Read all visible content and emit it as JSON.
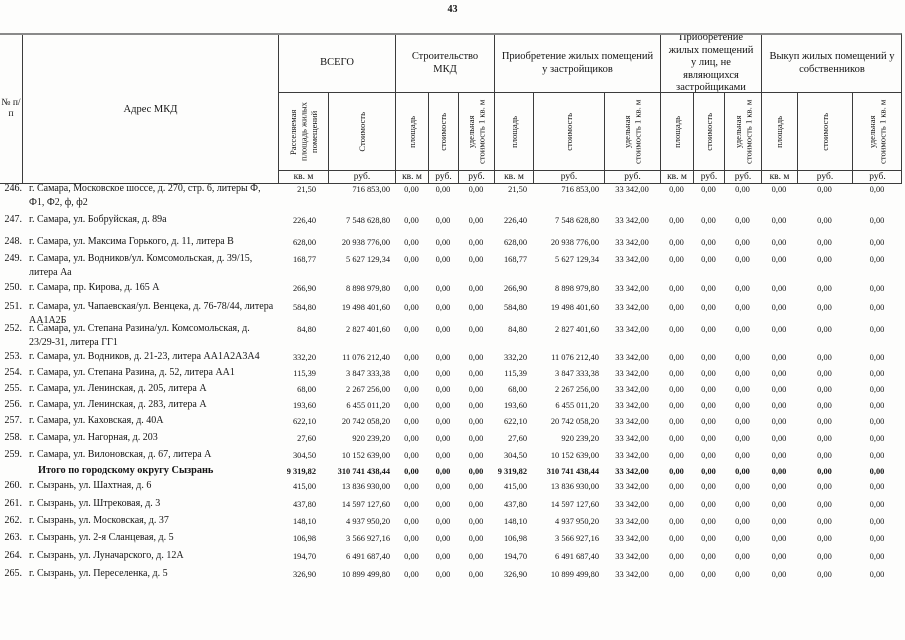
{
  "page": {
    "number": "43"
  },
  "table": {
    "headers": {
      "col_num": "№ п/п",
      "col_address": "Адрес МКД",
      "groups": [
        {
          "label": "ВСЕГО",
          "subs": [
            "Расселяемая площадь жилых помещений",
            "Стоимость"
          ],
          "units": [
            "кв. м",
            "руб."
          ]
        },
        {
          "label": "Строительство МКД",
          "subs": [
            "площадь",
            "стоимость",
            "удельная стоимость 1 кв. м"
          ],
          "units": [
            "кв. м",
            "руб.",
            "руб."
          ]
        },
        {
          "label": "Приобретение жилых помещений у застройщиков",
          "subs": [
            "площадь",
            "стоимость",
            "удельная стоимость 1 кв. м"
          ],
          "units": [
            "кв. м",
            "руб.",
            "руб."
          ]
        },
        {
          "label": "Приобретение жилых помещений у лиц, не являющихся застройщиками",
          "subs": [
            "площадь",
            "стоимость",
            "удельная стоимость 1 кв. м"
          ],
          "units": [
            "кв. м",
            "руб.",
            "руб."
          ]
        },
        {
          "label": "Выкуп жилых помещений у собственников",
          "subs": [
            "площадь",
            "стоимость",
            "удельная стоимость 1 кв. м"
          ],
          "units": [
            "кв. м",
            "руб.",
            "руб."
          ]
        }
      ]
    },
    "rows": [
      {
        "num": "246.",
        "address": "г. Самара, Московское шоссе, д. 270, стр. 6, литеры Ф, Ф1, Ф2, ф, ф2",
        "bold": false,
        "values": [
          "21,50",
          "716 853,00",
          "0,00",
          "0,00",
          "0,00",
          "21,50",
          "716 853,00",
          "33 342,00",
          "0,00",
          "0,00",
          "0,00",
          "0,00",
          "0,00",
          "0,00"
        ]
      },
      {
        "num": "247.",
        "address": "г. Самара, ул. Бобруйская, д. 89а",
        "bold": false,
        "values": [
          "226,40",
          "7 548 628,80",
          "0,00",
          "0,00",
          "0,00",
          "226,40",
          "7 548 628,80",
          "33 342,00",
          "0,00",
          "0,00",
          "0,00",
          "0,00",
          "0,00",
          "0,00"
        ]
      },
      {
        "num": "248.",
        "address": "г. Самара, ул. Максима Горького, д. 11, литера В",
        "bold": false,
        "values": [
          "628,00",
          "20 938 776,00",
          "0,00",
          "0,00",
          "0,00",
          "628,00",
          "20 938 776,00",
          "33 342,00",
          "0,00",
          "0,00",
          "0,00",
          "0,00",
          "0,00",
          "0,00"
        ]
      },
      {
        "num": "249.",
        "address": "г. Самара, ул. Водников/ул. Комсомольская, д. 39/15, литера Аа",
        "bold": false,
        "values": [
          "168,77",
          "5 627 129,34",
          "0,00",
          "0,00",
          "0,00",
          "168,77",
          "5 627 129,34",
          "33 342,00",
          "0,00",
          "0,00",
          "0,00",
          "0,00",
          "0,00",
          "0,00"
        ]
      },
      {
        "num": "250.",
        "address": "г. Самара, пр. Кирова, д. 165 А",
        "bold": false,
        "values": [
          "266,90",
          "8 898 979,80",
          "0,00",
          "0,00",
          "0,00",
          "266,90",
          "8 898 979,80",
          "33 342,00",
          "0,00",
          "0,00",
          "0,00",
          "0,00",
          "0,00",
          "0,00"
        ]
      },
      {
        "num": "251.",
        "address": "г. Самара, ул. Чапаевская/ул. Венцека, д. 76-78/44, литера АА1А2Б",
        "bold": false,
        "values": [
          "584,80",
          "19 498 401,60",
          "0,00",
          "0,00",
          "0,00",
          "584,80",
          "19 498 401,60",
          "33 342,00",
          "0,00",
          "0,00",
          "0,00",
          "0,00",
          "0,00",
          "0,00"
        ]
      },
      {
        "num": "252.",
        "address": "г. Самара, ул. Степана Разина/ул. Комсомольская, д. 23/29-31, литера ГГ1",
        "bold": false,
        "values": [
          "84,80",
          "2 827 401,60",
          "0,00",
          "0,00",
          "0,00",
          "84,80",
          "2 827 401,60",
          "33 342,00",
          "0,00",
          "0,00",
          "0,00",
          "0,00",
          "0,00",
          "0,00"
        ]
      },
      {
        "num": "253.",
        "address": "г. Самара, ул. Водников, д. 21-23, литера АА1А2А3А4",
        "bold": false,
        "values": [
          "332,20",
          "11 076 212,40",
          "0,00",
          "0,00",
          "0,00",
          "332,20",
          "11 076 212,40",
          "33 342,00",
          "0,00",
          "0,00",
          "0,00",
          "0,00",
          "0,00",
          "0,00"
        ]
      },
      {
        "num": "254.",
        "address": "г. Самара, ул. Степана Разина, д. 52, литера АА1",
        "bold": false,
        "values": [
          "115,39",
          "3 847 333,38",
          "0,00",
          "0,00",
          "0,00",
          "115,39",
          "3 847 333,38",
          "33 342,00",
          "0,00",
          "0,00",
          "0,00",
          "0,00",
          "0,00",
          "0,00"
        ]
      },
      {
        "num": "255.",
        "address": "г. Самара, ул. Ленинская, д. 205, литера А",
        "bold": false,
        "values": [
          "68,00",
          "2 267 256,00",
          "0,00",
          "0,00",
          "0,00",
          "68,00",
          "2 267 256,00",
          "33 342,00",
          "0,00",
          "0,00",
          "0,00",
          "0,00",
          "0,00",
          "0,00"
        ]
      },
      {
        "num": "256.",
        "address": "г. Самара, ул. Ленинская, д. 283, литера А",
        "bold": false,
        "values": [
          "193,60",
          "6 455 011,20",
          "0,00",
          "0,00",
          "0,00",
          "193,60",
          "6 455 011,20",
          "33 342,00",
          "0,00",
          "0,00",
          "0,00",
          "0,00",
          "0,00",
          "0,00"
        ]
      },
      {
        "num": "257.",
        "address": "г. Самара, ул. Каховская, д. 40А",
        "bold": false,
        "values": [
          "622,10",
          "20 742 058,20",
          "0,00",
          "0,00",
          "0,00",
          "622,10",
          "20 742 058,20",
          "33 342,00",
          "0,00",
          "0,00",
          "0,00",
          "0,00",
          "0,00",
          "0,00"
        ]
      },
      {
        "num": "258.",
        "address": "г. Самара, ул. Нагорная, д. 203",
        "bold": false,
        "values": [
          "27,60",
          "920 239,20",
          "0,00",
          "0,00",
          "0,00",
          "27,60",
          "920 239,20",
          "33 342,00",
          "0,00",
          "0,00",
          "0,00",
          "0,00",
          "0,00",
          "0,00"
        ]
      },
      {
        "num": "259.",
        "address": "г. Самара, ул. Вилоновская, д. 67, литера А",
        "bold": false,
        "values": [
          "304,50",
          "10 152 639,00",
          "0,00",
          "0,00",
          "0,00",
          "304,50",
          "10 152 639,00",
          "33 342,00",
          "0,00",
          "0,00",
          "0,00",
          "0,00",
          "0,00",
          "0,00"
        ]
      },
      {
        "num": "",
        "address": "Итого по городскому округу Сызрань",
        "bold": true,
        "values": [
          "9 319,82",
          "310 741 438,44",
          "0,00",
          "0,00",
          "0,00",
          "9 319,82",
          "310 741 438,44",
          "33 342,00",
          "0,00",
          "0,00",
          "0,00",
          "0,00",
          "0,00",
          "0,00"
        ]
      },
      {
        "num": "260.",
        "address": "г. Сызрань, ул. Шахтная, д. 6",
        "bold": false,
        "values": [
          "415,00",
          "13 836 930,00",
          "0,00",
          "0,00",
          "0,00",
          "415,00",
          "13 836 930,00",
          "33 342,00",
          "0,00",
          "0,00",
          "0,00",
          "0,00",
          "0,00",
          "0,00"
        ]
      },
      {
        "num": "261.",
        "address": "г. Сызрань, ул. Штрековая, д. 3",
        "bold": false,
        "values": [
          "437,80",
          "14 597 127,60",
          "0,00",
          "0,00",
          "0,00",
          "437,80",
          "14 597 127,60",
          "33 342,00",
          "0,00",
          "0,00",
          "0,00",
          "0,00",
          "0,00",
          "0,00"
        ]
      },
      {
        "num": "262.",
        "address": "г. Сызрань, ул. Московская, д. 37",
        "bold": false,
        "values": [
          "148,10",
          "4 937 950,20",
          "0,00",
          "0,00",
          "0,00",
          "148,10",
          "4 937 950,20",
          "33 342,00",
          "0,00",
          "0,00",
          "0,00",
          "0,00",
          "0,00",
          "0,00"
        ]
      },
      {
        "num": "263.",
        "address": "г. Сызрань, ул. 2-я Сланцевая, д. 5",
        "bold": false,
        "values": [
          "106,98",
          "3 566 927,16",
          "0,00",
          "0,00",
          "0,00",
          "106,98",
          "3 566 927,16",
          "33 342,00",
          "0,00",
          "0,00",
          "0,00",
          "0,00",
          "0,00",
          "0,00"
        ]
      },
      {
        "num": "264.",
        "address": "г. Сызрань, ул. Луначарского, д. 12А",
        "bold": false,
        "values": [
          "194,70",
          "6 491 687,40",
          "0,00",
          "0,00",
          "0,00",
          "194,70",
          "6 491 687,40",
          "33 342,00",
          "0,00",
          "0,00",
          "0,00",
          "0,00",
          "0,00",
          "0,00"
        ]
      },
      {
        "num": "265.",
        "address": "г. Сызрань, ул. Переселенка, д. 5",
        "bold": false,
        "values": [
          "326,90",
          "10 899 499,80",
          "0,00",
          "0,00",
          "0,00",
          "326,90",
          "10 899 499,80",
          "33 342,00",
          "0,00",
          "0,00",
          "0,00",
          "0,00",
          "0,00",
          "0,00"
        ]
      }
    ]
  }
}
